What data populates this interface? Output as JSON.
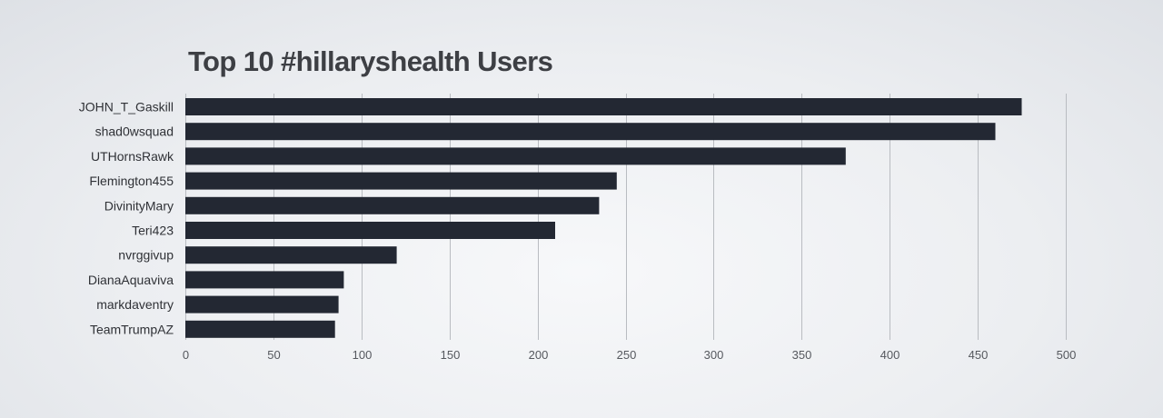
{
  "chart_data": {
    "type": "bar",
    "orientation": "horizontal",
    "title": "Top 10 #hillaryshealth Users",
    "xlabel": "",
    "ylabel": "",
    "categories": [
      "JOHN_T_Gaskill",
      "shad0wsquad",
      "UTHornsRawk",
      "Flemington455",
      "DivinityMary",
      "Teri423",
      "nvrggivup",
      "DianaAquaviva",
      "markdaventry",
      "TeamTrumpAZ"
    ],
    "values": [
      475,
      460,
      375,
      245,
      235,
      210,
      120,
      90,
      87,
      85
    ],
    "xlim": [
      0,
      500
    ],
    "xticks": [
      "0",
      "50",
      "100",
      "150",
      "200",
      "250",
      "300",
      "350",
      "400",
      "450",
      "500"
    ],
    "grid": "vertical",
    "legend": "none",
    "colors": {
      "bar": "#232833",
      "grid": "#b9bcc1",
      "title": "#3d3f44"
    }
  }
}
